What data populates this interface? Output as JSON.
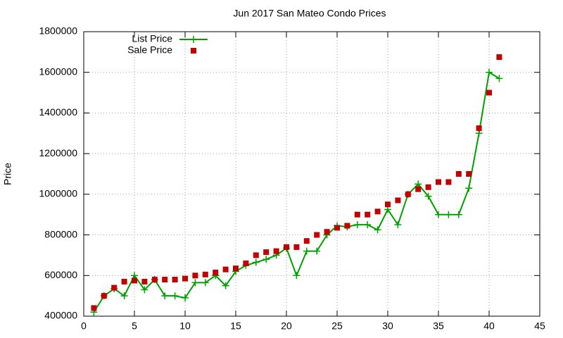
{
  "chart_data": {
    "type": "line",
    "title": "Jun 2017 San Mateo Condo Prices",
    "y_label": "Price",
    "xlim": [
      0,
      45
    ],
    "xticks": [
      0,
      5,
      10,
      15,
      20,
      25,
      30,
      35,
      40,
      45
    ],
    "ylim": [
      400000,
      1800000
    ],
    "yticks": [
      400000,
      600000,
      800000,
      1000000,
      1200000,
      1400000,
      1600000,
      1800000
    ],
    "grid": true,
    "legend": "top-left",
    "x": [
      1,
      2,
      3,
      4,
      5,
      6,
      7,
      8,
      9,
      10,
      11,
      12,
      13,
      14,
      15,
      16,
      17,
      18,
      19,
      20,
      21,
      22,
      23,
      24,
      25,
      26,
      27,
      28,
      29,
      30,
      31,
      32,
      33,
      34,
      35,
      36,
      37,
      38,
      39,
      40,
      41
    ],
    "series": [
      {
        "name": "List Price",
        "color": "#00a000",
        "style": "linespoints",
        "values": [
          420000,
          500000,
          535000,
          500000,
          600000,
          530000,
          580000,
          500000,
          500000,
          490000,
          565000,
          565000,
          600000,
          550000,
          620000,
          650000,
          665000,
          680000,
          700000,
          735000,
          600000,
          720000,
          720000,
          800000,
          845000,
          840000,
          850000,
          850000,
          825000,
          925000,
          850000,
          1000000,
          1050000,
          990000,
          900000,
          900000,
          900000,
          1030000,
          1300000,
          1600000,
          1570000
        ]
      },
      {
        "name": "Sale Price",
        "color": "#c00000",
        "style": "points",
        "values": [
          440000,
          500000,
          540000,
          570000,
          575000,
          570000,
          580000,
          580000,
          580000,
          585000,
          600000,
          605000,
          615000,
          630000,
          635000,
          660000,
          700000,
          715000,
          720000,
          740000,
          740000,
          770000,
          800000,
          815000,
          835000,
          845000,
          900000,
          900000,
          915000,
          950000,
          970000,
          1000000,
          1025000,
          1035000,
          1060000,
          1060000,
          1100000,
          1100000,
          1325000,
          1500000,
          1675000
        ]
      }
    ]
  }
}
